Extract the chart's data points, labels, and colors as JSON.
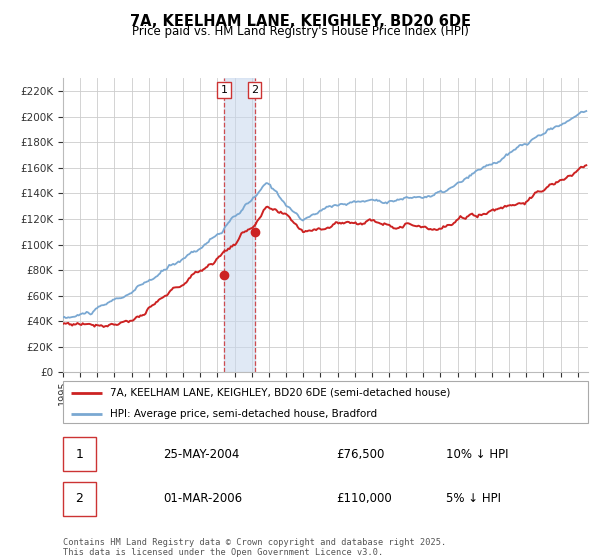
{
  "title": "7A, KEELHAM LANE, KEIGHLEY, BD20 6DE",
  "subtitle": "Price paid vs. HM Land Registry's House Price Index (HPI)",
  "ylim": [
    0,
    230000
  ],
  "yticks": [
    0,
    20000,
    40000,
    60000,
    80000,
    100000,
    120000,
    140000,
    160000,
    180000,
    200000,
    220000
  ],
  "ytick_labels": [
    "£0",
    "£20K",
    "£40K",
    "£60K",
    "£80K",
    "£100K",
    "£120K",
    "£140K",
    "£160K",
    "£180K",
    "£200K",
    "£220K"
  ],
  "hpi_color": "#7aa8d2",
  "price_color": "#cc2222",
  "transaction1_date": 2004.38,
  "transaction1_price": 76500,
  "transaction2_date": 2006.17,
  "transaction2_price": 110000,
  "shade_color": "#c8d8ee",
  "vline_color": "#cc3333",
  "legend_label1": "7A, KEELHAM LANE, KEIGHLEY, BD20 6DE (semi-detached house)",
  "legend_label2": "HPI: Average price, semi-detached house, Bradford",
  "table_row1": [
    "1",
    "25-MAY-2004",
    "£76,500",
    "10% ↓ HPI"
  ],
  "table_row2": [
    "2",
    "01-MAR-2006",
    "£110,000",
    "5% ↓ HPI"
  ],
  "footer": "Contains HM Land Registry data © Crown copyright and database right 2025.\nThis data is licensed under the Open Government Licence v3.0.",
  "bg_color": "#ffffff",
  "grid_color": "#cccccc",
  "xlim_start": 1995.0,
  "xlim_end": 2025.6
}
